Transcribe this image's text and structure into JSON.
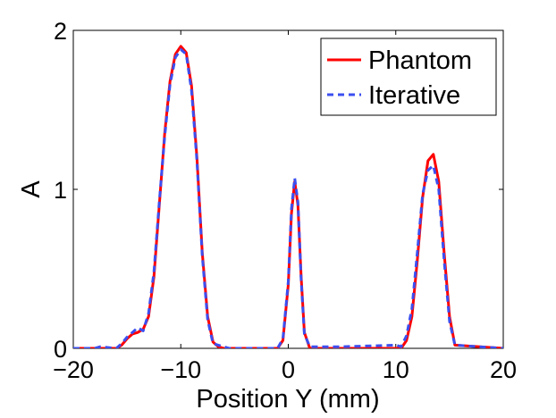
{
  "chart_data": {
    "type": "line",
    "xlabel": "Position Y (mm)",
    "ylabel": "A",
    "xlim": [
      -20,
      20
    ],
    "ylim": [
      0,
      2
    ],
    "xticks": [
      -20,
      -10,
      0,
      10,
      20
    ],
    "xtick_labels": [
      "−20",
      "−10",
      "0",
      "10",
      "20"
    ],
    "yticks": [
      0,
      1,
      2
    ],
    "ytick_labels": [
      "0",
      "1",
      "2"
    ],
    "grid": false,
    "legend_position": "top-right",
    "series": [
      {
        "name": "Phantom",
        "color": "#ff0000",
        "style": "solid",
        "x": [
          -20,
          -16,
          -15.5,
          -15,
          -14.5,
          -14,
          -13.5,
          -13,
          -12.5,
          -12,
          -11.5,
          -11,
          -10.5,
          -10,
          -9.5,
          -9,
          -8.5,
          -8,
          -7.5,
          -7,
          -6.5,
          -6,
          -1,
          -0.5,
          0,
          0.3,
          0.6,
          0.9,
          1.2,
          1.5,
          2,
          10.5,
          11,
          11.5,
          12,
          12.5,
          13,
          13.5,
          14,
          14.5,
          15,
          15.5,
          20
        ],
        "y": [
          0,
          0,
          0.02,
          0.06,
          0.09,
          0.1,
          0.12,
          0.2,
          0.45,
          0.9,
          1.35,
          1.68,
          1.85,
          1.9,
          1.86,
          1.65,
          1.2,
          0.6,
          0.2,
          0.04,
          0.01,
          0,
          0,
          0.05,
          0.4,
          0.85,
          1.05,
          0.9,
          0.45,
          0.1,
          0,
          0,
          0.05,
          0.2,
          0.55,
          0.95,
          1.18,
          1.22,
          1.05,
          0.6,
          0.2,
          0.02,
          0
        ]
      },
      {
        "name": "Iterative",
        "color": "#3b4ff0",
        "style": "dashed",
        "x": [
          -20,
          -18,
          -17.5,
          -16,
          -15.5,
          -15,
          -14.5,
          -14,
          -13.5,
          -13,
          -12.5,
          -12,
          -11.5,
          -11,
          -10.5,
          -10,
          -9.5,
          -9,
          -8.5,
          -8,
          -7.5,
          -7,
          -6.5,
          -6,
          -5.5,
          -1,
          -0.5,
          0,
          0.3,
          0.6,
          0.9,
          1.2,
          1.5,
          2,
          3,
          5,
          10,
          10.5,
          11,
          11.5,
          12,
          12.5,
          13,
          13.5,
          14,
          14.5,
          15,
          15.5,
          20
        ],
        "y": [
          0,
          0,
          0.01,
          0,
          0.03,
          0.07,
          0.1,
          0.13,
          0.11,
          0.22,
          0.48,
          0.92,
          1.33,
          1.66,
          1.83,
          1.88,
          1.85,
          1.62,
          1.18,
          0.58,
          0.18,
          0.03,
          0.02,
          0.01,
          0,
          0,
          0.06,
          0.42,
          0.88,
          1.07,
          0.92,
          0.43,
          0.09,
          0.01,
          0.01,
          0.01,
          0.02,
          0.01,
          0.08,
          0.25,
          0.6,
          0.97,
          1.12,
          1.15,
          1.0,
          0.55,
          0.17,
          0.02,
          0
        ]
      }
    ]
  }
}
